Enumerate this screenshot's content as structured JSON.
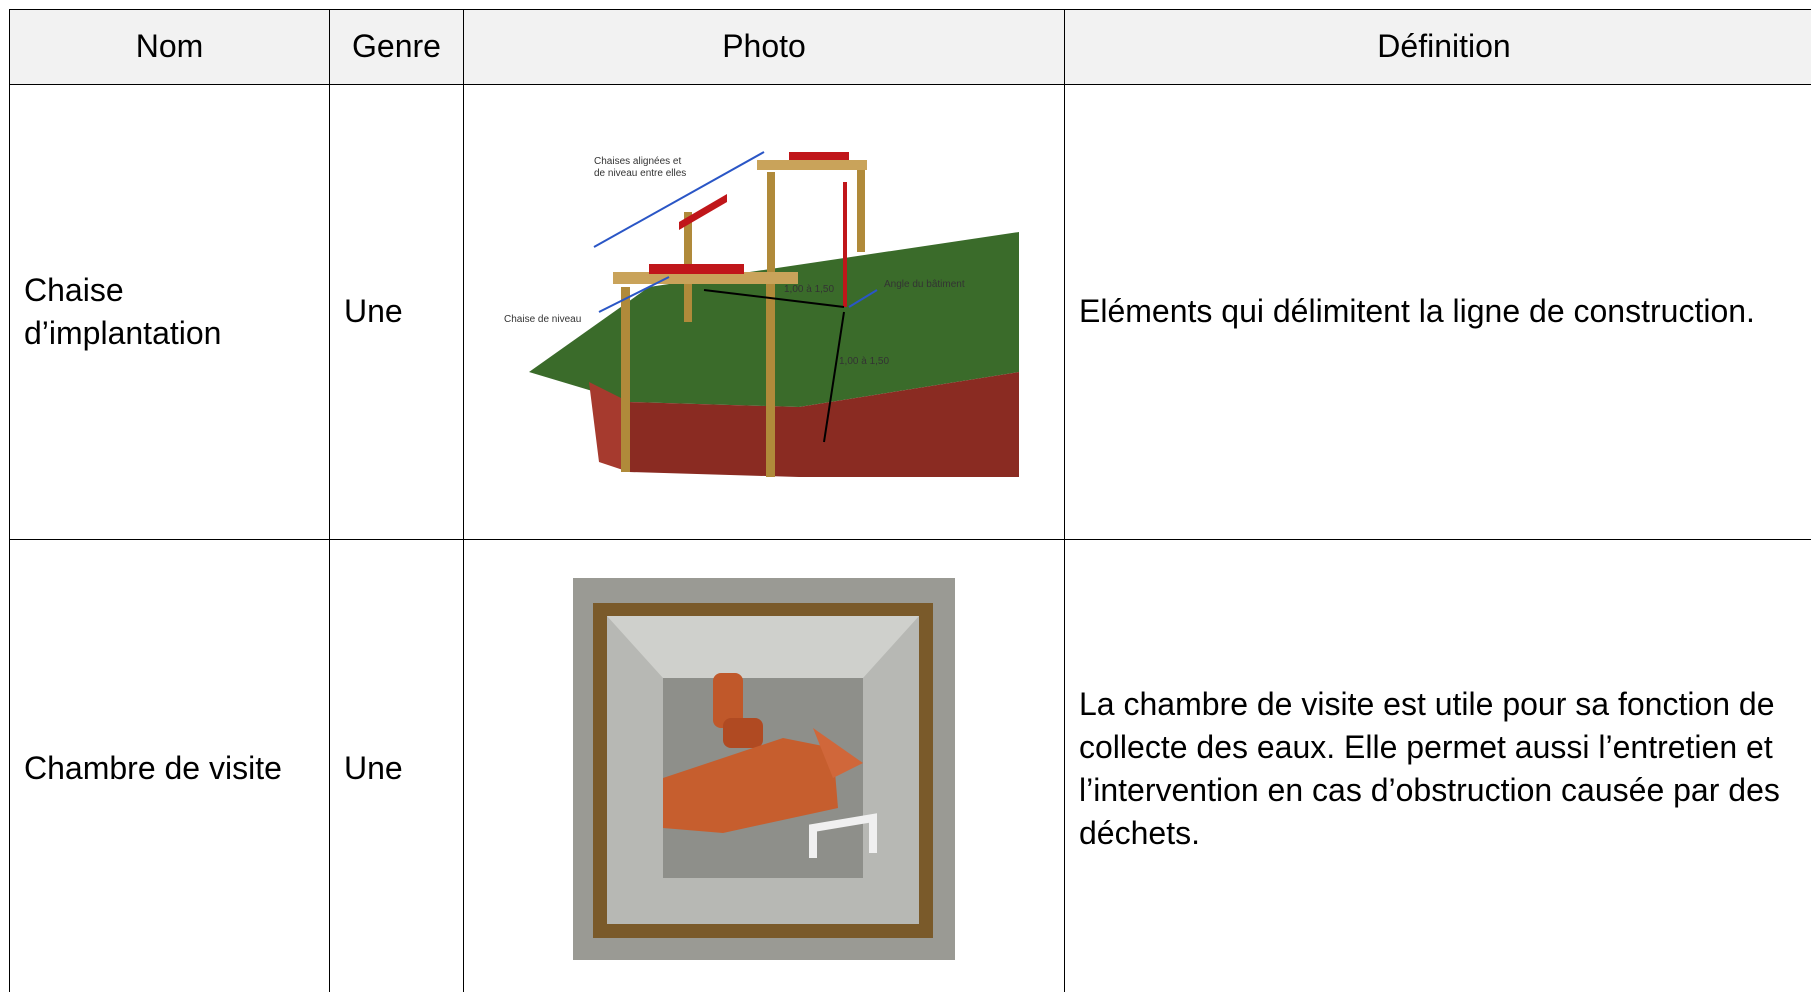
{
  "table": {
    "header": [
      "Nom",
      "Genre",
      "Photo",
      "Définition"
    ],
    "rows": [
      {
        "nom": "Chaise d’implantation",
        "genre": "Une",
        "photo_labels": [
          "Chaises alignées et",
          "de niveau entre elles",
          "1,00 à 1,50",
          "Angle du bâtiment",
          "Chaise de niveau",
          "1,00 à 1,50"
        ],
        "definition": "Eléments qui délimitent la ligne de construction."
      },
      {
        "nom": "Chambre de visite",
        "genre": "Une",
        "definition": "La chambre de visite est utile pour sa fonction de collecte des eaux. Elle permet aussi l’entretien et l’intervention en cas d’obstruction causée par des déchets."
      }
    ]
  }
}
